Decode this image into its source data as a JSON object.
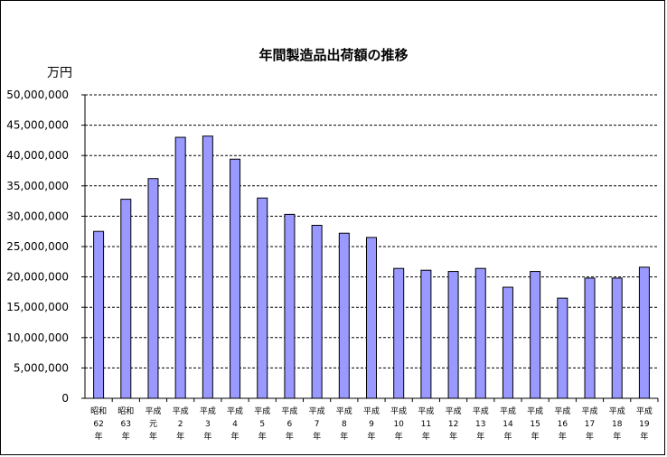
{
  "chart_data": {
    "type": "bar",
    "title": "年間製造品出荷額の推移",
    "unit_label": "万円",
    "ylim": [
      0,
      50000000
    ],
    "ytick_step": 5000000,
    "ytick_labels": [
      "0",
      "5,000,000",
      "10,000,000",
      "15,000,000",
      "20,000,000",
      "25,000,000",
      "30,000,000",
      "35,000,000",
      "40,000,000",
      "45,000,000",
      "50,000,000"
    ],
    "grid": "horizontal dashed",
    "bar_color": "#9999ff",
    "categories": [
      [
        "昭和",
        "62",
        "年"
      ],
      [
        "昭和",
        "63",
        "年"
      ],
      [
        "平成",
        "元",
        "年"
      ],
      [
        "平成",
        "2",
        "年"
      ],
      [
        "平成",
        "3",
        "年"
      ],
      [
        "平成",
        "4",
        "年"
      ],
      [
        "平成",
        "5",
        "年"
      ],
      [
        "平成",
        "6",
        "年"
      ],
      [
        "平成",
        "7",
        "年"
      ],
      [
        "平成",
        "8",
        "年"
      ],
      [
        "平成",
        "9",
        "年"
      ],
      [
        "平成",
        "10",
        "年"
      ],
      [
        "平成",
        "11",
        "年"
      ],
      [
        "平成",
        "12",
        "年"
      ],
      [
        "平成",
        "13",
        "年"
      ],
      [
        "平成",
        "14",
        "年"
      ],
      [
        "平成",
        "15",
        "年"
      ],
      [
        "平成",
        "16",
        "年"
      ],
      [
        "平成",
        "17",
        "年"
      ],
      [
        "平成",
        "18",
        "年"
      ],
      [
        "平成",
        "19",
        "年"
      ]
    ],
    "values": [
      27500000,
      32800000,
      36200000,
      43000000,
      43200000,
      39400000,
      33000000,
      30300000,
      28500000,
      27200000,
      26500000,
      21400000,
      21100000,
      20900000,
      21400000,
      18300000,
      20900000,
      16500000,
      19800000,
      19800000,
      21600000
    ]
  }
}
